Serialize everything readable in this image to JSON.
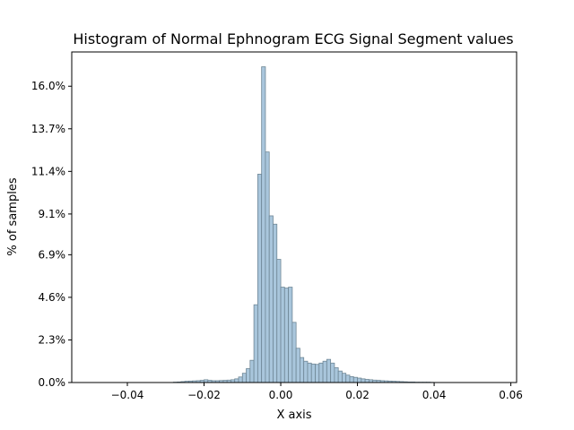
{
  "chart_data": {
    "type": "bar",
    "title": "Histogram of Normal Ephnogram ECG Signal Segment values",
    "xlabel": "X axis",
    "ylabel": "% of samples",
    "xlim": [
      -0.0545,
      0.0615
    ],
    "ylim": [
      0,
      17.85
    ],
    "xticks": [
      {
        "value": -0.04,
        "label": "−0.04"
      },
      {
        "value": -0.02,
        "label": "−0.02"
      },
      {
        "value": 0.0,
        "label": "0.00"
      },
      {
        "value": 0.02,
        "label": "0.02"
      },
      {
        "value": 0.04,
        "label": "0.04"
      },
      {
        "value": 0.06,
        "label": "0.06"
      }
    ],
    "yticks": [
      {
        "value": 0.0,
        "label": "0.0%"
      },
      {
        "value": 2.3,
        "label": "2.3%"
      },
      {
        "value": 4.6,
        "label": "4.6%"
      },
      {
        "value": 6.9,
        "label": "6.9%"
      },
      {
        "value": 9.1,
        "label": "9.1%"
      },
      {
        "value": 11.4,
        "label": "11.4%"
      },
      {
        "value": 13.7,
        "label": "13.7%"
      },
      {
        "value": 16.0,
        "label": "16.0%"
      }
    ],
    "bin_width": 0.001,
    "bin_starts": [
      -0.028,
      -0.027,
      -0.026,
      -0.025,
      -0.024,
      -0.023,
      -0.022,
      -0.021,
      -0.02,
      -0.019,
      -0.018,
      -0.017,
      -0.016,
      -0.015,
      -0.014,
      -0.013,
      -0.012,
      -0.011,
      -0.01,
      -0.009,
      -0.008,
      -0.007,
      -0.006,
      -0.005,
      -0.004,
      -0.003,
      -0.002,
      -0.001,
      0.0,
      0.001,
      0.002,
      0.003,
      0.004,
      0.005,
      0.006,
      0.007,
      0.008,
      0.009,
      0.01,
      0.011,
      0.012,
      0.013,
      0.014,
      0.015,
      0.016,
      0.017,
      0.018,
      0.019,
      0.02,
      0.021,
      0.022,
      0.023,
      0.024,
      0.025,
      0.026,
      0.027,
      0.028,
      0.029,
      0.03,
      0.031,
      0.032,
      0.033,
      0.034,
      0.035,
      0.036,
      0.037,
      0.038,
      0.039
    ],
    "values": [
      0.02,
      0.03,
      0.05,
      0.07,
      0.08,
      0.09,
      0.1,
      0.12,
      0.15,
      0.12,
      0.1,
      0.1,
      0.11,
      0.12,
      0.13,
      0.15,
      0.2,
      0.3,
      0.5,
      0.75,
      1.2,
      4.2,
      11.25,
      17.05,
      12.45,
      9.0,
      8.55,
      6.65,
      5.15,
      5.1,
      5.15,
      3.25,
      1.85,
      1.35,
      1.15,
      1.05,
      1.0,
      0.98,
      1.05,
      1.15,
      1.25,
      1.05,
      0.8,
      0.62,
      0.5,
      0.4,
      0.32,
      0.28,
      0.24,
      0.2,
      0.17,
      0.15,
      0.13,
      0.12,
      0.1,
      0.09,
      0.08,
      0.07,
      0.06,
      0.05,
      0.04,
      0.03,
      0.03,
      0.02,
      0.02,
      0.02,
      0.02,
      0.01
    ],
    "bar_color": "#a9c6dc",
    "edge_color": "#6f8796",
    "grid": false
  }
}
